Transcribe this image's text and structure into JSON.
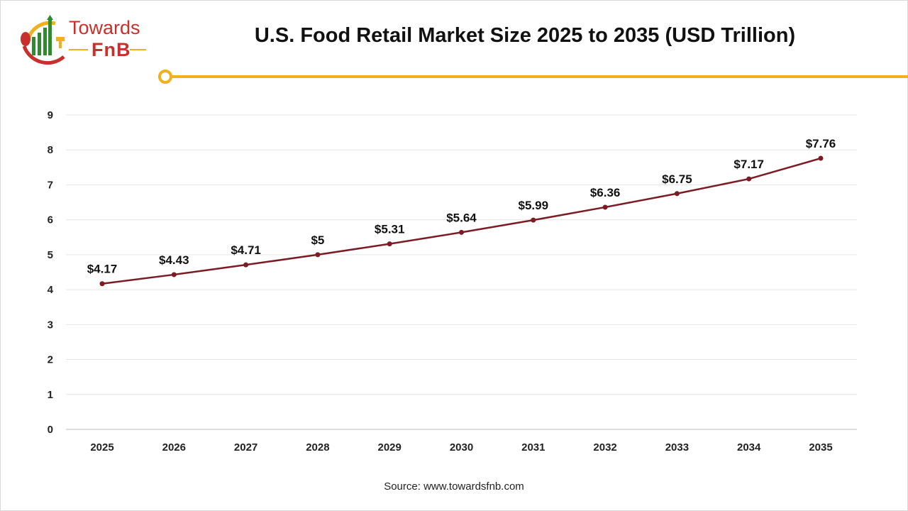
{
  "logo": {
    "line1": "Towards",
    "line2": "FnB"
  },
  "colors": {
    "line": "#7b1c25",
    "accent": "#f2b01e",
    "grid": "#e6e6e6",
    "brand_red": "#c9302c",
    "brand_green": "#2e8b2e"
  },
  "chart_data": {
    "type": "line",
    "title": "U.S. Food Retail Market Size 2025 to 2035 (USD Trillion)",
    "categories": [
      "2025",
      "2026",
      "2027",
      "2028",
      "2029",
      "2030",
      "2031",
      "2032",
      "2033",
      "2034",
      "2035"
    ],
    "values": [
      4.17,
      4.43,
      4.71,
      5,
      5.31,
      5.64,
      5.99,
      6.36,
      6.75,
      7.17,
      7.76
    ],
    "data_labels": [
      "$4.17",
      "$4.43",
      "$4.71",
      "$5",
      "$5.31",
      "$5.64",
      "$5.99",
      "$6.36",
      "$6.75",
      "$7.17",
      "$7.76"
    ],
    "ylim": [
      0,
      9
    ],
    "yticks": [
      "0",
      "1",
      "2",
      "3",
      "4",
      "5",
      "6",
      "7",
      "8",
      "9"
    ],
    "grid": true,
    "legend": "none",
    "xlabel": "",
    "ylabel": ""
  },
  "source": "Source: www.towardsfnb.com"
}
